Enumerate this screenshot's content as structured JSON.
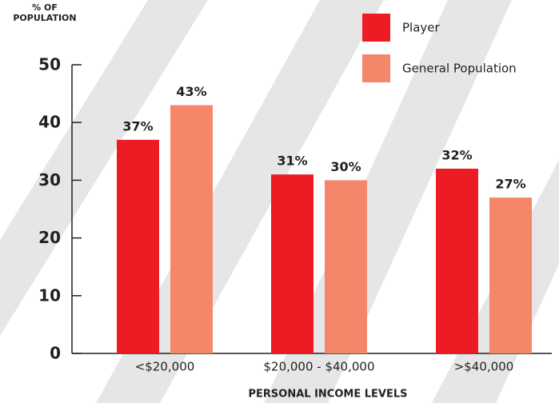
{
  "chart_data": {
    "type": "bar",
    "y_label": "% OF POPULATION",
    "x_label": "PERSONAL INCOME LEVELS",
    "categories": [
      "<$20,000",
      "$20,000 - $40,000",
      ">$40,000"
    ],
    "series": [
      {
        "name": "Player",
        "color": "#ed1c24",
        "values": [
          37,
          31,
          32
        ],
        "value_labels": [
          "37%",
          "31%",
          "32%"
        ]
      },
      {
        "name": "General Population",
        "color": "#f4876a",
        "values": [
          43,
          30,
          27
        ],
        "value_labels": [
          "43%",
          "30%",
          "27%"
        ]
      }
    ],
    "ylim": [
      0,
      50
    ],
    "yticks": [
      0,
      10,
      20,
      30,
      40,
      50
    ]
  }
}
